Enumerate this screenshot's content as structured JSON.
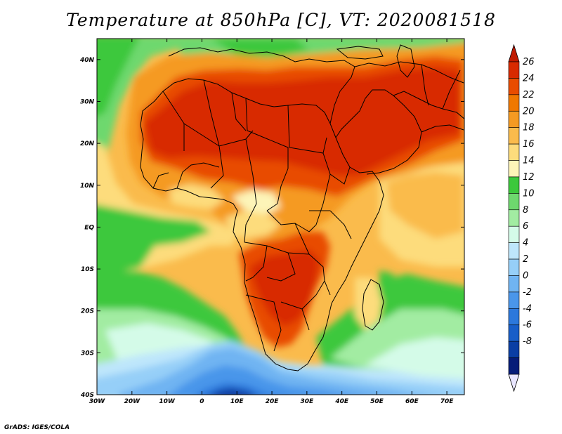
{
  "title": "Temperature at 850hPa [C], VT: 2020081518",
  "credit": "GrADS: IGES/COLA",
  "map": {
    "lon_range": [
      -30,
      75
    ],
    "lat_range": [
      -40,
      45
    ],
    "x_ticks": [
      {
        "lon": -30,
        "label": "30W"
      },
      {
        "lon": -20,
        "label": "20W"
      },
      {
        "lon": -10,
        "label": "10W"
      },
      {
        "lon": 0,
        "label": "0"
      },
      {
        "lon": 10,
        "label": "10E"
      },
      {
        "lon": 20,
        "label": "20E"
      },
      {
        "lon": 30,
        "label": "30E"
      },
      {
        "lon": 40,
        "label": "40E"
      },
      {
        "lon": 50,
        "label": "50E"
      },
      {
        "lon": 60,
        "label": "60E"
      },
      {
        "lon": 70,
        "label": "70E"
      }
    ],
    "y_ticks": [
      {
        "lat": 40,
        "label": "40N"
      },
      {
        "lat": 30,
        "label": "30N"
      },
      {
        "lat": 20,
        "label": "20N"
      },
      {
        "lat": 10,
        "label": "10N"
      },
      {
        "lat": 0,
        "label": "EQ"
      },
      {
        "lat": -10,
        "label": "10S"
      },
      {
        "lat": -20,
        "label": "20S"
      },
      {
        "lat": -30,
        "label": "30S"
      },
      {
        "lat": -40,
        "label": "40S"
      }
    ]
  },
  "colorbar": {
    "top_arrow_color": "#c01a00",
    "bottom_arrow_color": "#e9e6ff",
    "bins_top_to_bottom": [
      "#d82a00",
      "#e84c00",
      "#f07800",
      "#f59a22",
      "#fabb4c",
      "#fddc7c",
      "#fdf4b8",
      "#3cc83c",
      "#6ed86e",
      "#a2eca2",
      "#d4fbe8",
      "#bee6fb",
      "#96cff8",
      "#70b4f2",
      "#4a96ea",
      "#2c78dc",
      "#185ec8",
      "#0a3ea4",
      "#061c78"
    ],
    "labels": [
      "26",
      "24",
      "22",
      "20",
      "18",
      "16",
      "14",
      "12",
      "10",
      "8",
      "6",
      "4",
      "2",
      "0",
      "-2",
      "-4",
      "-6",
      "-8"
    ]
  }
}
